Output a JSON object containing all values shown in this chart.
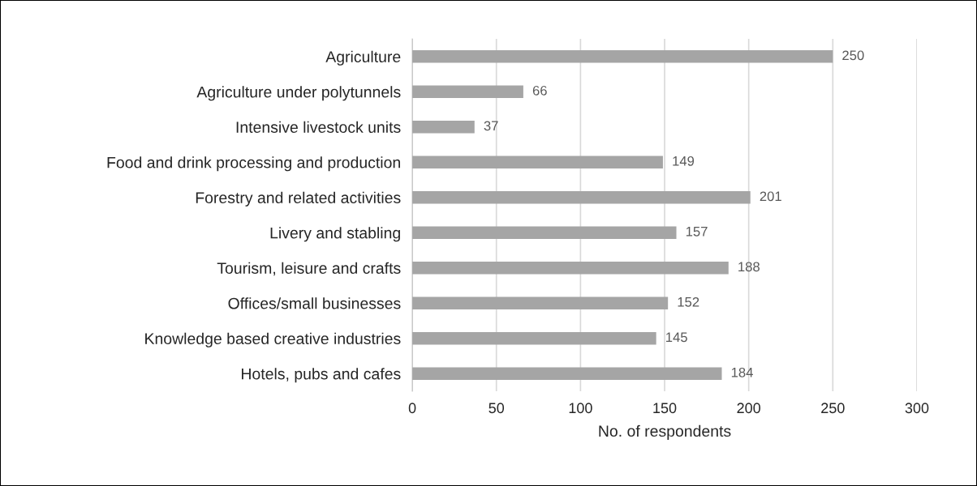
{
  "chart_data": {
    "type": "bar",
    "orientation": "horizontal",
    "xlabel": "No. of respondents",
    "categories": [
      "Agriculture",
      "Agriculture under polytunnels",
      "Intensive livestock units",
      "Food and drink processing and production",
      "Forestry and related activities",
      "Livery and stabling",
      "Tourism, leisure and crafts",
      "Offices/small businesses",
      "Knowledge based creative industries",
      "Hotels, pubs and cafes"
    ],
    "values": [
      250,
      66,
      37,
      149,
      201,
      157,
      188,
      152,
      145,
      184
    ],
    "color": "#a5a5a5",
    "data_labels": true,
    "xlim": [
      0,
      300
    ],
    "xticks": [
      0,
      50,
      100,
      150,
      200,
      250,
      300
    ],
    "grid": "x",
    "legend": false
  }
}
